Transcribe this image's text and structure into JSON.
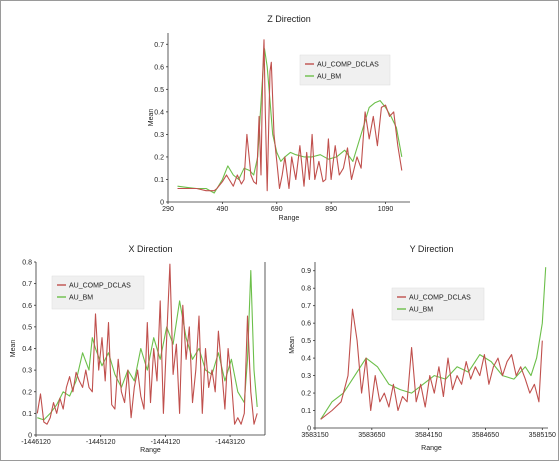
{
  "colors": {
    "comp": "#c0504d",
    "bm": "#6cbf4a",
    "legend_bg": "#f0f0f0"
  },
  "chart_data": [
    {
      "type": "line",
      "title": "Z Direction",
      "xlabel": "Range",
      "ylabel": "Mean",
      "xlim": [
        290,
        1180
      ],
      "ylim": [
        0,
        0.75
      ],
      "xticks": [
        "290",
        "490",
        "690",
        "890",
        "1090"
      ],
      "yticks": [
        "0",
        "0.1",
        "0.2",
        "0.3",
        "0.4",
        "0.5",
        "0.6",
        "0.7"
      ],
      "legend_position": "top-right",
      "series": [
        {
          "name": "AU_COMP_DCLAS",
          "x": [
            325,
            360,
            395,
            430,
            460,
            470,
            490,
            505,
            515,
            530,
            545,
            560,
            570,
            580,
            595,
            605,
            615,
            625,
            632,
            638,
            643,
            648,
            655,
            665,
            670,
            680,
            690,
            700,
            710,
            720,
            735,
            745,
            760,
            775,
            790,
            800,
            810,
            820,
            830,
            845,
            860,
            870,
            880,
            890,
            905,
            920,
            935,
            950,
            965,
            985,
            1000,
            1015,
            1030,
            1045,
            1060,
            1075,
            1090,
            1105,
            1120,
            1135,
            1150
          ],
          "values": [
            0.06,
            0.06,
            0.06,
            0.05,
            0.05,
            0.06,
            0.09,
            0.12,
            0.1,
            0.07,
            0.12,
            0.08,
            0.1,
            0.3,
            0.12,
            0.09,
            0.08,
            0.38,
            0.12,
            0.55,
            0.72,
            0.4,
            0.05,
            0.58,
            0.62,
            0.3,
            0.18,
            0.06,
            0.12,
            0.2,
            0.06,
            0.2,
            0.1,
            0.25,
            0.07,
            0.22,
            0.1,
            0.3,
            0.1,
            0.18,
            0.09,
            0.1,
            0.28,
            0.1,
            0.25,
            0.12,
            0.15,
            0.24,
            0.1,
            0.2,
            0.15,
            0.4,
            0.28,
            0.38,
            0.25,
            0.42,
            0.43,
            0.38,
            0.4,
            0.25,
            0.14
          ]
        },
        {
          "name": "AU_BM",
          "x": [
            325,
            360,
            395,
            430,
            460,
            490,
            510,
            530,
            550,
            570,
            590,
            605,
            620,
            635,
            645,
            655,
            665,
            675,
            690,
            705,
            720,
            740,
            760,
            790,
            820,
            850,
            880,
            910,
            940,
            970,
            1000,
            1030,
            1050,
            1070,
            1090,
            1110,
            1130,
            1150
          ],
          "values": [
            0.07,
            0.065,
            0.06,
            0.06,
            0.04,
            0.1,
            0.16,
            0.12,
            0.1,
            0.15,
            0.14,
            0.12,
            0.2,
            0.5,
            0.68,
            0.6,
            0.45,
            0.3,
            0.22,
            0.18,
            0.2,
            0.22,
            0.21,
            0.2,
            0.2,
            0.21,
            0.19,
            0.2,
            0.23,
            0.18,
            0.3,
            0.42,
            0.44,
            0.45,
            0.42,
            0.38,
            0.33,
            0.2
          ]
        }
      ]
    },
    {
      "type": "line",
      "title": "X Direction",
      "xlabel": "Range",
      "ylabel": "Mean",
      "xlim": [
        -1446120,
        -1442580
      ],
      "ylim": [
        0,
        0.8
      ],
      "xticks": [
        "-1446120",
        "-1445120",
        "-1444120",
        "-1443120"
      ],
      "yticks": [
        "0",
        "0.1",
        "0.2",
        "0.3",
        "0.4",
        "0.5",
        "0.6",
        "0.7",
        "0.8"
      ],
      "legend_position": "top-left",
      "series": [
        {
          "name": "AU_COMP_DCLAS",
          "x": [
            -1446100,
            -1446050,
            -1446000,
            -1445950,
            -1445900,
            -1445850,
            -1445800,
            -1445750,
            -1445700,
            -1445650,
            -1445600,
            -1445550,
            -1445500,
            -1445450,
            -1445400,
            -1445350,
            -1445300,
            -1445250,
            -1445200,
            -1445150,
            -1445100,
            -1445050,
            -1445000,
            -1444950,
            -1444900,
            -1444850,
            -1444800,
            -1444750,
            -1444700,
            -1444650,
            -1444600,
            -1444550,
            -1444500,
            -1444450,
            -1444400,
            -1444350,
            -1444300,
            -1444250,
            -1444200,
            -1444150,
            -1444100,
            -1444050,
            -1444000,
            -1443950,
            -1443900,
            -1443850,
            -1443800,
            -1443750,
            -1443700,
            -1443650,
            -1443600,
            -1443550,
            -1443500,
            -1443450,
            -1443400,
            -1443350,
            -1443300,
            -1443250,
            -1443200,
            -1443150,
            -1443100,
            -1443050,
            -1443000,
            -1442950,
            -1442900,
            -1442850,
            -1442800,
            -1442750,
            -1442700
          ],
          "values": [
            0.1,
            0.19,
            0.06,
            0.05,
            0.08,
            0.15,
            0.1,
            0.17,
            0.12,
            0.22,
            0.27,
            0.2,
            0.29,
            0.25,
            0.22,
            0.3,
            0.22,
            0.2,
            0.56,
            0.3,
            0.45,
            0.25,
            0.52,
            0.14,
            0.12,
            0.35,
            0.2,
            0.15,
            0.3,
            0.08,
            0.22,
            0.3,
            0.18,
            0.12,
            0.52,
            0.15,
            0.4,
            0.25,
            0.62,
            0.1,
            0.45,
            0.79,
            0.28,
            0.42,
            0.1,
            0.6,
            0.35,
            0.5,
            0.15,
            0.3,
            0.55,
            0.1,
            0.4,
            0.22,
            0.3,
            0.2,
            0.48,
            0.3,
            0.12,
            0.4,
            0.25,
            0.05,
            0.08,
            0.05,
            0.1,
            0.55,
            0.2,
            0.05,
            0.1
          ]
        },
        {
          "name": "AU_BM",
          "x": [
            -1446100,
            -1446000,
            -1445900,
            -1445800,
            -1445700,
            -1445600,
            -1445500,
            -1445400,
            -1445300,
            -1445250,
            -1445200,
            -1445100,
            -1445000,
            -1444900,
            -1444800,
            -1444700,
            -1444600,
            -1444500,
            -1444400,
            -1444300,
            -1444200,
            -1444100,
            -1444000,
            -1443900,
            -1443800,
            -1443700,
            -1443600,
            -1443500,
            -1443400,
            -1443300,
            -1443200,
            -1443100,
            -1443000,
            -1442900,
            -1442850,
            -1442800,
            -1442750,
            -1442700
          ],
          "values": [
            0.08,
            0.07,
            0.1,
            0.14,
            0.2,
            0.18,
            0.25,
            0.38,
            0.3,
            0.45,
            0.4,
            0.32,
            0.38,
            0.28,
            0.22,
            0.3,
            0.25,
            0.4,
            0.3,
            0.45,
            0.35,
            0.5,
            0.42,
            0.62,
            0.45,
            0.35,
            0.4,
            0.3,
            0.28,
            0.38,
            0.25,
            0.35,
            0.2,
            0.15,
            0.35,
            0.76,
            0.3,
            0.13
          ]
        }
      ]
    },
    {
      "type": "line",
      "title": "Y Direction",
      "xlabel": "Range",
      "ylabel": "Mean",
      "xlim": [
        3583150,
        3585200
      ],
      "ylim": [
        0,
        0.95
      ],
      "xticks": [
        "3583150",
        "3583650",
        "3584150",
        "3584650",
        "3585150"
      ],
      "yticks": [
        "0",
        "0.1",
        "0.2",
        "0.3",
        "0.4",
        "0.5",
        "0.6",
        "0.7",
        "0.8",
        "0.9"
      ],
      "legend_position": "top-right",
      "series": [
        {
          "name": "AU_COMP_DCLAS",
          "x": [
            3583200,
            3583300,
            3583380,
            3583440,
            3583480,
            3583520,
            3583560,
            3583600,
            3583640,
            3583680,
            3583720,
            3583760,
            3583800,
            3583840,
            3583880,
            3583920,
            3583960,
            3584000,
            3584040,
            3584080,
            3584120,
            3584160,
            3584200,
            3584240,
            3584280,
            3584320,
            3584360,
            3584400,
            3584440,
            3584480,
            3584520,
            3584560,
            3584600,
            3584640,
            3584680,
            3584720,
            3584760,
            3584800,
            3584840,
            3584880,
            3584920,
            3584960,
            3585000,
            3585040,
            3585080,
            3585120,
            3585150
          ],
          "values": [
            0.05,
            0.1,
            0.15,
            0.3,
            0.68,
            0.5,
            0.2,
            0.4,
            0.1,
            0.3,
            0.15,
            0.2,
            0.12,
            0.25,
            0.1,
            0.18,
            0.15,
            0.46,
            0.15,
            0.25,
            0.12,
            0.3,
            0.2,
            0.35,
            0.18,
            0.4,
            0.22,
            0.3,
            0.25,
            0.38,
            0.28,
            0.35,
            0.3,
            0.42,
            0.25,
            0.35,
            0.4,
            0.3,
            0.38,
            0.42,
            0.3,
            0.35,
            0.28,
            0.2,
            0.25,
            0.15,
            0.5
          ]
        },
        {
          "name": "AU_BM",
          "x": [
            3583200,
            3583300,
            3583400,
            3583500,
            3583600,
            3583700,
            3583800,
            3583900,
            3584000,
            3584100,
            3584200,
            3584300,
            3584400,
            3584500,
            3584600,
            3584700,
            3584800,
            3584900,
            3585000,
            3585050,
            3585100,
            3585150,
            3585180
          ],
          "values": [
            0.05,
            0.15,
            0.2,
            0.3,
            0.4,
            0.35,
            0.25,
            0.22,
            0.2,
            0.25,
            0.3,
            0.28,
            0.35,
            0.32,
            0.42,
            0.38,
            0.3,
            0.28,
            0.35,
            0.3,
            0.4,
            0.6,
            0.92
          ]
        }
      ]
    }
  ]
}
